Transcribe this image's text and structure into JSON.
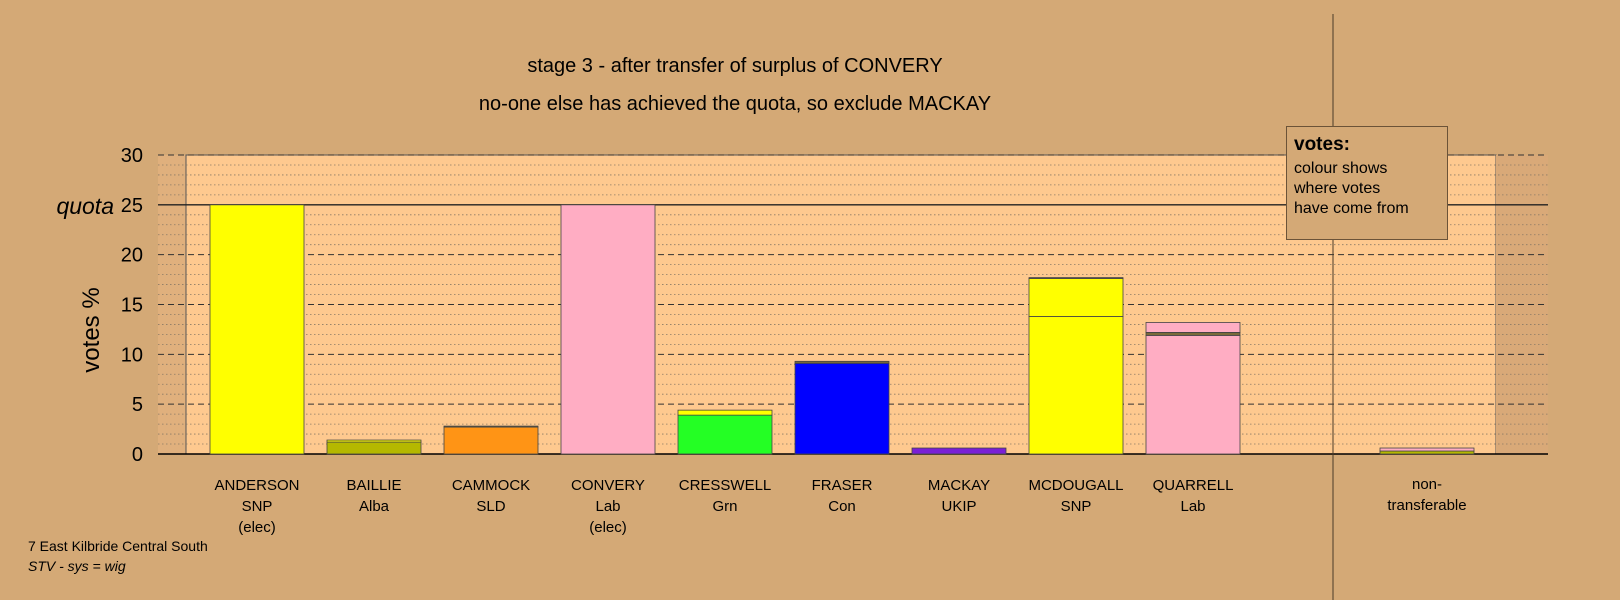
{
  "chart_data": {
    "type": "bar",
    "title": "stage 3 - after transfer of surplus of CONVERY",
    "subtitle": "no-one else has achieved the quota, so exclude MACKAY",
    "ylabel": "votes %",
    "quota_label": "quota",
    "quota": 25,
    "ylim": [
      0,
      30
    ],
    "yticks": [
      "0",
      "5",
      "10",
      "15",
      "20",
      "25",
      "30"
    ],
    "grid": true,
    "colors": {
      "background": "#d4a976",
      "plot": "#fec98f",
      "snp": "#ffff00",
      "alba": "#b5b800",
      "sld": "#ff9415",
      "lab": "#ffadc3",
      "grn": "#24ff24",
      "con": "#0000ff",
      "ukip": "#7a1fd6",
      "transfer": "#7a6a3a"
    },
    "candidates": [
      {
        "name": "ANDERSON",
        "party": "SNP",
        "status": "(elec)",
        "segments": [
          {
            "value": 25.0,
            "color": "#ffff00"
          }
        ]
      },
      {
        "name": "BAILLIE",
        "party": "Alba",
        "status": "",
        "segments": [
          {
            "value": 1.2,
            "color": "#b5b800"
          },
          {
            "value": 0.2,
            "color": "#ffff00"
          }
        ]
      },
      {
        "name": "CAMMOCK",
        "party": "SLD",
        "status": "",
        "segments": [
          {
            "value": 2.7,
            "color": "#ff9415"
          },
          {
            "value": 0.1,
            "color": "#7a6a3a"
          }
        ]
      },
      {
        "name": "CONVERY",
        "party": "Lab",
        "status": "(elec)",
        "segments": [
          {
            "value": 25.0,
            "color": "#ffadc3"
          }
        ]
      },
      {
        "name": "CRESSWELL",
        "party": "Grn",
        "status": "",
        "segments": [
          {
            "value": 3.9,
            "color": "#24ff24"
          },
          {
            "value": 0.5,
            "color": "#ffff00"
          }
        ]
      },
      {
        "name": "FRASER",
        "party": "Con",
        "status": "",
        "segments": [
          {
            "value": 9.1,
            "color": "#0000ff"
          },
          {
            "value": 0.2,
            "color": "#7a6a3a"
          }
        ]
      },
      {
        "name": "MACKAY",
        "party": "UKIP",
        "status": "",
        "segments": [
          {
            "value": 0.6,
            "color": "#7a1fd6"
          }
        ]
      },
      {
        "name": "MCDOUGALL",
        "party": "SNP",
        "status": "",
        "segments": [
          {
            "value": 13.8,
            "color": "#ffff00"
          },
          {
            "value": 3.8,
            "color": "#ffff00"
          },
          {
            "value": 0.1,
            "color": "#7a6a3a"
          }
        ]
      },
      {
        "name": "QUARRELL",
        "party": "Lab",
        "status": "",
        "segments": [
          {
            "value": 11.9,
            "color": "#ffadc3"
          },
          {
            "value": 0.3,
            "color": "#7a6a3a"
          },
          {
            "value": 1.0,
            "color": "#ffadc3"
          }
        ]
      }
    ],
    "nontransferable": {
      "label_line1": "non-",
      "label_line2": "transferable",
      "segments": [
        {
          "value": 0.3,
          "color": "#b5b800"
        },
        {
          "value": 0.3,
          "color": "#ffadc3"
        }
      ]
    }
  },
  "legend": {
    "title": "votes:",
    "lines": [
      "colour shows",
      "where votes",
      "have come from"
    ]
  },
  "footer": {
    "ward": "7 East Kilbride Central South",
    "system": "STV - sys = wig"
  }
}
